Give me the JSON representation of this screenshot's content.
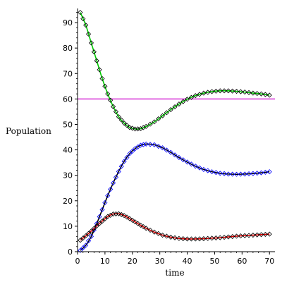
{
  "chart_data": {
    "type": "line",
    "title": "",
    "xlabel": "time",
    "ylabel": "Population",
    "xlim": [
      0,
      72
    ],
    "ylim": [
      0,
      95
    ],
    "xticks": [
      0,
      10,
      20,
      30,
      40,
      50,
      60,
      70
    ],
    "yticks": [
      0,
      10,
      20,
      30,
      40,
      50,
      60,
      70,
      80,
      90
    ],
    "grid": false,
    "legend": "none",
    "reference_line": {
      "y": 60,
      "color": "#cc00cc"
    },
    "series": [
      {
        "color": "#00cc00",
        "marker_color": "#000000",
        "x": [
          1,
          3,
          5,
          7,
          9,
          11,
          13,
          15,
          17,
          19,
          21,
          23,
          25,
          28,
          31,
          34,
          37,
          40,
          43,
          46,
          49,
          52,
          55,
          58,
          61,
          64,
          67,
          70
        ],
        "y": [
          94,
          89,
          82,
          75,
          68,
          62,
          57,
          53,
          50.5,
          48.8,
          48.2,
          48.3,
          49.2,
          51,
          53.4,
          55.8,
          58,
          59.9,
          61.3,
          62.3,
          62.9,
          63.2,
          63.2,
          63,
          62.7,
          62.3,
          62,
          61.5
        ]
      },
      {
        "color": "#000000",
        "marker_color": "#0000ff",
        "x": [
          1,
          3,
          5,
          7,
          9,
          11,
          13,
          15,
          17,
          19,
          21,
          23,
          25,
          28,
          31,
          34,
          37,
          40,
          43,
          46,
          49,
          52,
          55,
          58,
          61,
          64,
          67,
          70
        ],
        "y": [
          0.5,
          2.5,
          6,
          11,
          16.5,
          22,
          27,
          31.5,
          35.5,
          38.5,
          40.5,
          41.8,
          42.3,
          42,
          40.8,
          39,
          37,
          35.2,
          33.6,
          32.3,
          31.4,
          30.8,
          30.5,
          30.4,
          30.5,
          30.7,
          31,
          31.4
        ]
      },
      {
        "color": "#dd0000",
        "marker_color": "#000000",
        "x": [
          1,
          3,
          5,
          7,
          9,
          11,
          13,
          15,
          17,
          19,
          21,
          23,
          25,
          28,
          31,
          34,
          37,
          40,
          43,
          46,
          49,
          52,
          55,
          58,
          61,
          64,
          67,
          70
        ],
        "y": [
          4.5,
          6.2,
          8.1,
          10.1,
          12,
          13.8,
          14.8,
          14.9,
          14.2,
          13,
          11.7,
          10.4,
          9.2,
          7.7,
          6.5,
          5.7,
          5.2,
          5,
          5,
          5.1,
          5.3,
          5.5,
          5.8,
          6.1,
          6.3,
          6.5,
          6.7,
          6.9
        ]
      }
    ]
  }
}
